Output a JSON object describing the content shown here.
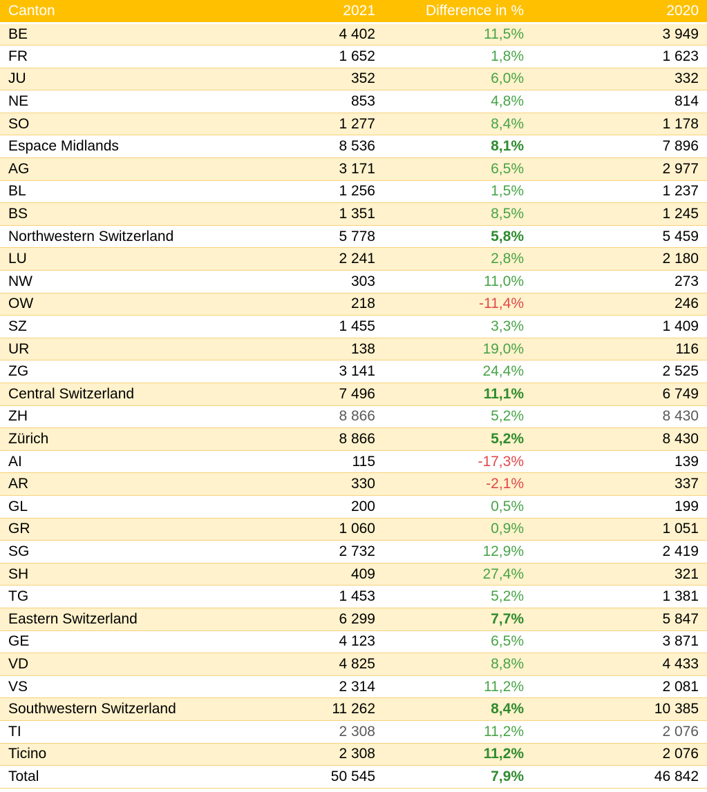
{
  "header": {
    "canton": "Canton",
    "y2021": "2021",
    "diff": "Difference in %",
    "y2020": "2020"
  },
  "rows": [
    {
      "name": "BE",
      "v2021": "4 402",
      "diff": "11,5%",
      "v2020": "3 949"
    },
    {
      "name": "FR",
      "v2021": "1 652",
      "diff": "1,8%",
      "v2020": "1 623"
    },
    {
      "name": "JU",
      "v2021": "352",
      "diff": "6,0%",
      "v2020": "332"
    },
    {
      "name": "NE",
      "v2021": "853",
      "diff": "4,8%",
      "v2020": "814"
    },
    {
      "name": "SO",
      "v2021": "1 277",
      "diff": "8,4%",
      "v2020": "1 178"
    },
    {
      "name": "Espace Midlands",
      "v2021": "8 536",
      "diff": "8,1%",
      "v2020": "7 896"
    },
    {
      "name": "AG",
      "v2021": "3 171",
      "diff": "6,5%",
      "v2020": "2 977"
    },
    {
      "name": "BL",
      "v2021": "1 256",
      "diff": "1,5%",
      "v2020": "1 237"
    },
    {
      "name": "BS",
      "v2021": "1 351",
      "diff": "8,5%",
      "v2020": "1 245"
    },
    {
      "name": "Northwestern Switzerland",
      "v2021": "5 778",
      "diff": "5,8%",
      "v2020": "5 459"
    },
    {
      "name": "LU",
      "v2021": "2 241",
      "diff": "2,8%",
      "v2020": "2 180"
    },
    {
      "name": "NW",
      "v2021": "303",
      "diff": "11,0%",
      "v2020": "273"
    },
    {
      "name": "OW",
      "v2021": "218",
      "diff": "-11,4%",
      "v2020": "246"
    },
    {
      "name": "SZ",
      "v2021": "1 455",
      "diff": "3,3%",
      "v2020": "1 409"
    },
    {
      "name": "UR",
      "v2021": "138",
      "diff": "19,0%",
      "v2020": "116"
    },
    {
      "name": "ZG",
      "v2021": "3 141",
      "diff": "24,4%",
      "v2020": "2 525"
    },
    {
      "name": "Central Switzerland",
      "v2021": "7 496",
      "diff": "11,1%",
      "v2020": "6 749"
    },
    {
      "name": "ZH",
      "v2021": "8 866",
      "diff": "5,2%",
      "v2020": "8 430"
    },
    {
      "name": "Zürich",
      "v2021": "8 866",
      "diff": "5,2%",
      "v2020": "8 430"
    },
    {
      "name": "AI",
      "v2021": "115",
      "diff": "-17,3%",
      "v2020": "139"
    },
    {
      "name": "AR",
      "v2021": "330",
      "diff": "-2,1%",
      "v2020": "337"
    },
    {
      "name": "GL",
      "v2021": "200",
      "diff": "0,5%",
      "v2020": "199"
    },
    {
      "name": "GR",
      "v2021": "1 060",
      "diff": "0,9%",
      "v2020": "1 051"
    },
    {
      "name": "SG",
      "v2021": "2 732",
      "diff": "12,9%",
      "v2020": "2 419"
    },
    {
      "name": "SH",
      "v2021": "409",
      "diff": "27,4%",
      "v2020": "321"
    },
    {
      "name": "TG",
      "v2021": "1 453",
      "diff": "5,2%",
      "v2020": "1 381"
    },
    {
      "name": "Eastern Switzerland",
      "v2021": "6 299",
      "diff": "7,7%",
      "v2020": "5 847"
    },
    {
      "name": "GE",
      "v2021": "4 123",
      "diff": "6,5%",
      "v2020": "3 871"
    },
    {
      "name": "VD",
      "v2021": "4 825",
      "diff": "8,8%",
      "v2020": "4 433"
    },
    {
      "name": "VS",
      "v2021": "2 314",
      "diff": "11,2%",
      "v2020": "2 081"
    },
    {
      "name": "Southwestern Switzerland",
      "v2021": "11 262",
      "diff": "8,4%",
      "v2020": "10 385"
    },
    {
      "name": "TI",
      "v2021": "2 308",
      "diff": "11,2%",
      "v2020": "2 076"
    },
    {
      "name": "Ticino",
      "v2021": "2 308",
      "diff": "11,2%",
      "v2020": "2 076"
    },
    {
      "name": "Total",
      "v2021": "50 545",
      "diff": "7,9%",
      "v2020": "46 842"
    }
  ],
  "colors": {
    "header_bg": "#ffc000",
    "band_bg": "#fff2cc",
    "positive": "#47a347",
    "negative": "#e0484b"
  }
}
